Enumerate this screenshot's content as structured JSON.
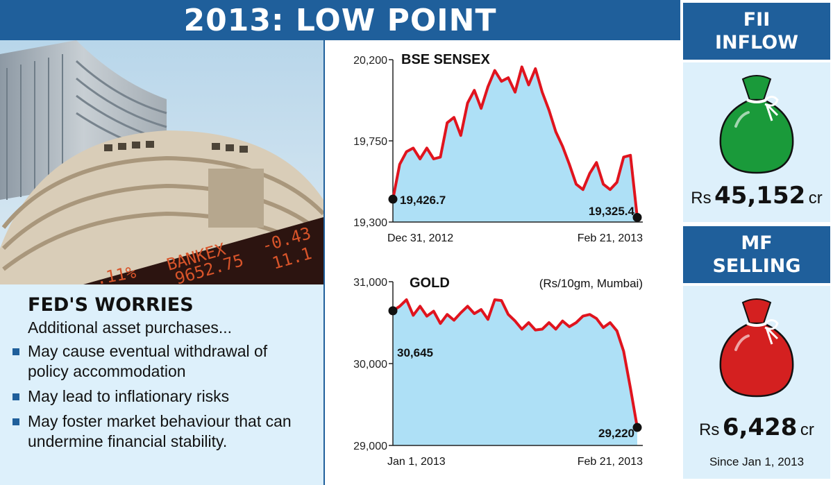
{
  "title": "2013: LOW POINT",
  "photo": {
    "ticker_1": "BANKEX",
    "ticker_2": "9652.75",
    "ticker_3": "-0.43",
    "ticker_4": "11.1",
    "ticker_5": ".11%"
  },
  "fed": {
    "heading": "FED'S WORRIES",
    "subheading": "Additional asset purchases...",
    "items": [
      "May cause eventual withdrawal of policy accommodation",
      "May lead to inflationary risks",
      "May foster market behaviour that can undermine financial stability."
    ]
  },
  "right": {
    "fii_title_1": "FII",
    "fii_title_2": "INFLOW",
    "fii_rs": "Rs",
    "fii_value": "45,152",
    "fii_cr": "cr",
    "mf_title_1": "MF",
    "mf_title_2": "SELLING",
    "mf_rs": "Rs",
    "mf_value": "6,428",
    "mf_cr": "cr",
    "mf_note": "Since Jan 1, 2013",
    "fii_bag_color": "#1a9a3a",
    "mf_bag_color": "#d42020"
  },
  "colors": {
    "accent": "#1f5f9b",
    "panel": "#ddf0fb",
    "line": "#e0141e",
    "fill": "#aee0f6"
  },
  "chart_data": [
    {
      "type": "area",
      "title": "BSE SENSEX",
      "ylim": [
        19300,
        20200
      ],
      "yticks": [
        20200,
        19750,
        19300
      ],
      "ytick_labels": [
        "20,200",
        "19,750",
        "19,300"
      ],
      "x_start_label": "Dec 31, 2012",
      "x_end_label": "Feb 21, 2013",
      "start_label": "19,426.7",
      "end_label": "19,325.4",
      "values": [
        19426.7,
        19620,
        19690,
        19710,
        19650,
        19710,
        19650,
        19660,
        19850,
        19880,
        19780,
        19960,
        20030,
        19930,
        20050,
        20140,
        20080,
        20100,
        20020,
        20160,
        20060,
        20150,
        20020,
        19920,
        19800,
        19720,
        19620,
        19510,
        19480,
        19570,
        19630,
        19510,
        19480,
        19520,
        19660,
        19670,
        19325.4
      ]
    },
    {
      "type": "area",
      "title": "GOLD",
      "subtitle": "(Rs/10gm, Mumbai)",
      "ylim": [
        29000,
        31000
      ],
      "yticks": [
        31000,
        30000,
        29000
      ],
      "ytick_labels": [
        "31,000",
        "30,000",
        "29,000"
      ],
      "x_start_label": "Jan 1, 2013",
      "x_end_label": "Feb 21, 2013",
      "start_label": "30,645",
      "end_label": "29,220",
      "values": [
        30645,
        30700,
        30780,
        30590,
        30700,
        30580,
        30640,
        30490,
        30600,
        30530,
        30620,
        30700,
        30610,
        30660,
        30540,
        30780,
        30770,
        30600,
        30520,
        30420,
        30500,
        30410,
        30420,
        30500,
        30420,
        30520,
        30450,
        30500,
        30580,
        30600,
        30550,
        30440,
        30500,
        30400,
        30150,
        29700,
        29220
      ]
    }
  ]
}
